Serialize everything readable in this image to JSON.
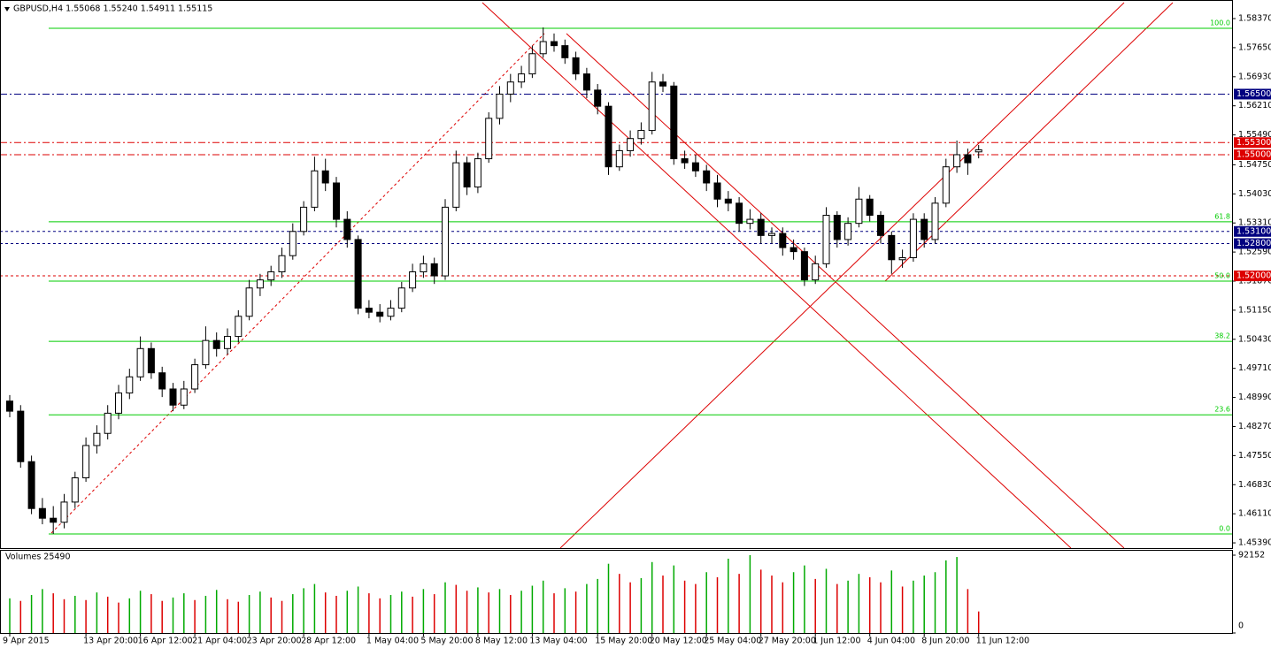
{
  "chart_data": {
    "type": "candlestick",
    "title": "GBPUSD,H4  1.55068 1.55240 1.54911 1.55115",
    "categories": [
      "9 Apr 2015",
      null,
      null,
      null,
      null,
      null,
      null,
      "13 Apr 20:00",
      null,
      null,
      null,
      null,
      "16 Apr 12:00",
      null,
      null,
      null,
      null,
      "21 Apr 04:00",
      null,
      null,
      null,
      null,
      "23 Apr 20:00",
      null,
      null,
      null,
      null,
      "28 Apr 12:00",
      null,
      null,
      null,
      null,
      null,
      "1 May 04:00",
      null,
      null,
      null,
      null,
      "5 May 20:00",
      null,
      null,
      null,
      null,
      "8 May 12:00",
      null,
      null,
      null,
      null,
      "13 May 04:00",
      null,
      null,
      null,
      null,
      null,
      "15 May 20:00",
      null,
      null,
      null,
      null,
      "20 May 12:00",
      null,
      null,
      null,
      null,
      "25 May 04:00",
      null,
      null,
      null,
      null,
      "27 May 20:00",
      null,
      null,
      null,
      null,
      "1 Jun 12:00",
      null,
      null,
      null,
      null,
      "4 Jun 04:00",
      null,
      null,
      null,
      null,
      "8 Jun 20:00",
      null,
      null,
      null,
      null,
      "11 Jun 12:00"
    ],
    "open": [
      1.489,
      1.4865,
      1.474,
      1.4624,
      1.46,
      1.459,
      1.464,
      1.47,
      1.478,
      1.481,
      1.486,
      1.491,
      1.495,
      1.502,
      1.496,
      1.492,
      1.488,
      1.492,
      1.498,
      1.504,
      1.502,
      1.505,
      1.51,
      1.517,
      1.519,
      1.521,
      1.525,
      1.531,
      1.537,
      1.546,
      1.543,
      1.534,
      1.529,
      1.512,
      1.511,
      1.51,
      1.512,
      1.517,
      1.521,
      1.523,
      1.52,
      1.537,
      1.548,
      1.542,
      1.549,
      1.559,
      1.565,
      1.568,
      1.57,
      1.575,
      1.578,
      1.577,
      1.574,
      1.57,
      1.566,
      1.562,
      1.547,
      1.551,
      1.554,
      1.556,
      1.568,
      1.567,
      1.549,
      1.548,
      1.546,
      1.543,
      1.539,
      1.538,
      1.533,
      1.534,
      1.53,
      1.5305,
      1.527,
      1.526,
      1.519,
      1.523,
      1.535,
      1.529,
      1.533,
      1.539,
      1.535,
      1.53,
      1.524,
      1.5245,
      1.534,
      1.529,
      1.538,
      1.547,
      1.55,
      1.5507
    ],
    "high": [
      1.4905,
      1.488,
      1.4755,
      1.465,
      1.463,
      1.466,
      1.4715,
      1.48,
      1.483,
      1.488,
      1.493,
      1.497,
      1.505,
      1.5035,
      1.4975,
      1.4935,
      1.494,
      1.4995,
      1.5075,
      1.506,
      1.507,
      1.5115,
      1.519,
      1.5205,
      1.5225,
      1.527,
      1.533,
      1.5385,
      1.5495,
      1.549,
      1.5445,
      1.536,
      1.53,
      1.514,
      1.513,
      1.514,
      1.5185,
      1.523,
      1.525,
      1.5245,
      1.539,
      1.551,
      1.5495,
      1.5505,
      1.5605,
      1.567,
      1.57,
      1.572,
      1.577,
      1.5815,
      1.58,
      1.5785,
      1.5755,
      1.5715,
      1.5675,
      1.563,
      1.5525,
      1.556,
      1.558,
      1.5705,
      1.57,
      1.568,
      1.551,
      1.55,
      1.5475,
      1.545,
      1.541,
      1.5395,
      1.5365,
      1.5355,
      1.532,
      1.532,
      1.529,
      1.527,
      1.525,
      1.537,
      1.536,
      1.5345,
      1.542,
      1.54,
      1.536,
      1.531,
      1.5265,
      1.5355,
      1.5355,
      1.5395,
      1.549,
      1.5535,
      1.5515,
      1.5524
    ],
    "low": [
      1.485,
      1.4725,
      1.461,
      1.4585,
      1.4561,
      1.4575,
      1.4625,
      1.469,
      1.476,
      1.4795,
      1.4845,
      1.4895,
      1.494,
      1.4945,
      1.49,
      1.4865,
      1.487,
      1.491,
      1.497,
      1.5,
      1.5005,
      1.5035,
      1.509,
      1.515,
      1.5175,
      1.5195,
      1.524,
      1.53,
      1.536,
      1.541,
      1.532,
      1.527,
      1.5105,
      1.5095,
      1.5085,
      1.509,
      1.511,
      1.516,
      1.5195,
      1.518,
      1.519,
      1.536,
      1.54,
      1.5405,
      1.548,
      1.5575,
      1.563,
      1.5665,
      1.569,
      1.574,
      1.5755,
      1.5725,
      1.5685,
      1.564,
      1.56,
      1.545,
      1.546,
      1.5495,
      1.5525,
      1.555,
      1.5655,
      1.5475,
      1.5465,
      1.5445,
      1.541,
      1.537,
      1.536,
      1.531,
      1.5315,
      1.528,
      1.528,
      1.525,
      1.524,
      1.5175,
      1.518,
      1.522,
      1.527,
      1.5275,
      1.532,
      1.5335,
      1.528,
      1.5205,
      1.522,
      1.5235,
      1.527,
      1.528,
      1.537,
      1.5455,
      1.545,
      1.5491
    ],
    "close": [
      1.4865,
      1.474,
      1.4624,
      1.46,
      1.459,
      1.464,
      1.47,
      1.478,
      1.481,
      1.486,
      1.491,
      1.495,
      1.502,
      1.496,
      1.492,
      1.488,
      1.492,
      1.498,
      1.504,
      1.502,
      1.505,
      1.51,
      1.517,
      1.519,
      1.521,
      1.525,
      1.531,
      1.537,
      1.546,
      1.543,
      1.534,
      1.529,
      1.512,
      1.511,
      1.51,
      1.512,
      1.517,
      1.521,
      1.523,
      1.52,
      1.537,
      1.548,
      1.542,
      1.549,
      1.559,
      1.565,
      1.568,
      1.57,
      1.575,
      1.578,
      1.577,
      1.574,
      1.57,
      1.566,
      1.562,
      1.547,
      1.551,
      1.554,
      1.556,
      1.568,
      1.567,
      1.549,
      1.548,
      1.546,
      1.543,
      1.539,
      1.538,
      1.533,
      1.534,
      1.53,
      1.5305,
      1.527,
      1.526,
      1.519,
      1.523,
      1.535,
      1.529,
      1.533,
      1.539,
      1.535,
      1.53,
      1.524,
      1.5245,
      1.534,
      1.529,
      1.538,
      1.547,
      1.55,
      1.548,
      1.5512
    ],
    "ylim": [
      1.4526,
      1.5883
    ],
    "yticks": [
      {
        "value": 1.5837,
        "label": "1.58370"
      },
      {
        "value": 1.5765,
        "label": "1.57650"
      },
      {
        "value": 1.5693,
        "label": "1.56930"
      },
      {
        "value": 1.5621,
        "label": "1.56210"
      },
      {
        "value": 1.5549,
        "label": "1.55490"
      },
      {
        "value": 1.5475,
        "label": "1.54750"
      },
      {
        "value": 1.5403,
        "label": "1.54030"
      },
      {
        "value": 1.5331,
        "label": "1.53310"
      },
      {
        "value": 1.5259,
        "label": "1.52590"
      },
      {
        "value": 1.5187,
        "label": "1.51870"
      },
      {
        "value": 1.5115,
        "label": "1.51150"
      },
      {
        "value": 1.5043,
        "label": "1.50430"
      },
      {
        "value": 1.4971,
        "label": "1.49710"
      },
      {
        "value": 1.4899,
        "label": "1.48990"
      },
      {
        "value": 1.4827,
        "label": "1.48270"
      },
      {
        "value": 1.4755,
        "label": "1.47550"
      },
      {
        "value": 1.4683,
        "label": "1.46830"
      },
      {
        "value": 1.4611,
        "label": "1.46110"
      },
      {
        "value": 1.4539,
        "label": "1.45390"
      }
    ],
    "fibonacci": [
      {
        "value": 1.5813,
        "label": "100.0"
      },
      {
        "value": 1.5334,
        "label": "61.8"
      },
      {
        "value": 1.5187,
        "label": "50.0"
      },
      {
        "value": 1.5038,
        "label": "38.2"
      },
      {
        "value": 1.4856,
        "label": "23.6"
      },
      {
        "value": 1.4561,
        "label": "0.0"
      }
    ],
    "fib_color": "#00cc00",
    "price_lines": [
      {
        "value": 1.565,
        "label": "1.56500",
        "color": "#000080",
        "dash": "8 3 2 3"
      },
      {
        "value": 1.553,
        "label": "1.55300",
        "color": "#dd0000",
        "dash": "8 3 2 3"
      },
      {
        "value": 1.55,
        "label": "1.55000",
        "color": "#dd0000",
        "dash": "8 3 2 3"
      },
      {
        "value": 1.531,
        "label": "1.53100",
        "color": "#000080",
        "dash": "3 3"
      },
      {
        "value": 1.528,
        "label": "1.52800",
        "color": "#000080",
        "dash": "3 3"
      },
      {
        "value": 1.52,
        "label": "1.52000",
        "color": "#dd0000",
        "dash": "3 3"
      }
    ],
    "volume": {
      "title": "Volumes 25490",
      "values": [
        41000,
        38000,
        45000,
        52000,
        47000,
        40000,
        44000,
        39000,
        48000,
        43000,
        36000,
        41000,
        50000,
        46000,
        38000,
        42000,
        47000,
        39000,
        44000,
        51000,
        40000,
        37000,
        45000,
        49000,
        42000,
        38000,
        46000,
        53000,
        58000,
        48000,
        44000,
        50000,
        55000,
        47000,
        41000,
        45000,
        49000,
        43000,
        52000,
        46000,
        60000,
        57000,
        50000,
        54000,
        48000,
        52000,
        45000,
        50000,
        56000,
        62000,
        47000,
        53000,
        49000,
        58000,
        64000,
        82000,
        70000,
        60000,
        65000,
        84000,
        68000,
        80000,
        62000,
        58000,
        72000,
        66000,
        88000,
        70000,
        92152,
        75000,
        68000,
        60000,
        72000,
        80000,
        64000,
        76000,
        58000,
        62000,
        70000,
        66000,
        60000,
        74000,
        55000,
        62000,
        68000,
        72000,
        86000,
        90000,
        52000,
        25490
      ],
      "ylim": [
        0,
        92152
      ],
      "yticks": [
        0,
        92152
      ],
      "up_color": "#00aa00",
      "down_color": "#dd0000"
    }
  }
}
